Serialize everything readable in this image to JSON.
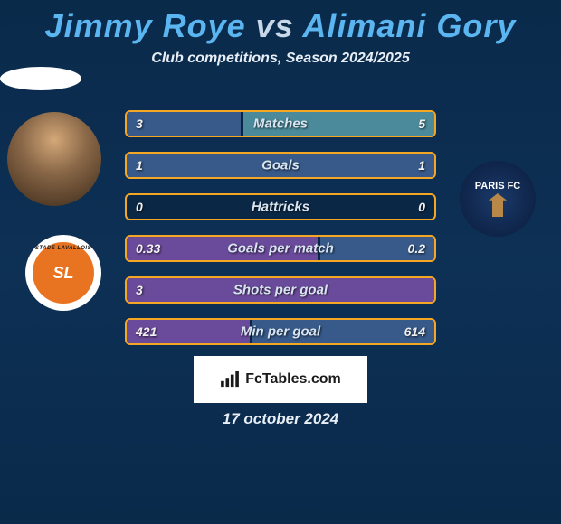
{
  "title": {
    "player1": "Jimmy Roye",
    "vs": "vs",
    "player2": "Alimani Gory"
  },
  "subtitle": "Club competitions, Season 2024/2025",
  "date": "17 october 2024",
  "branding": "FcTables.com",
  "club1_badge_text": "SL",
  "club1_badge_top": "STADE LAVALLOIS",
  "club2_badge_text": "PARIS FC",
  "colors": {
    "border": "#f5a623",
    "fill_left": "#375a8a",
    "fill_right": "#375a8a",
    "highlight_left": "#6a4a9a",
    "highlight_right": "#4a8a9a"
  },
  "stats": [
    {
      "label": "Matches",
      "left_val": "3",
      "right_val": "5",
      "left_pct": 37,
      "right_pct": 62,
      "winner": "right"
    },
    {
      "label": "Goals",
      "left_val": "1",
      "right_val": "1",
      "left_pct": 50,
      "right_pct": 50,
      "winner": "tie"
    },
    {
      "label": "Hattricks",
      "left_val": "0",
      "right_val": "0",
      "left_pct": 0,
      "right_pct": 0,
      "winner": "tie"
    },
    {
      "label": "Goals per match",
      "left_val": "0.33",
      "right_val": "0.2",
      "left_pct": 62,
      "right_pct": 37,
      "winner": "left"
    },
    {
      "label": "Shots per goal",
      "left_val": "3",
      "right_val": "",
      "left_pct": 100,
      "right_pct": 0,
      "winner": "left"
    },
    {
      "label": "Min per goal",
      "left_val": "421",
      "right_val": "614",
      "left_pct": 40,
      "right_pct": 59,
      "winner": "left"
    }
  ]
}
